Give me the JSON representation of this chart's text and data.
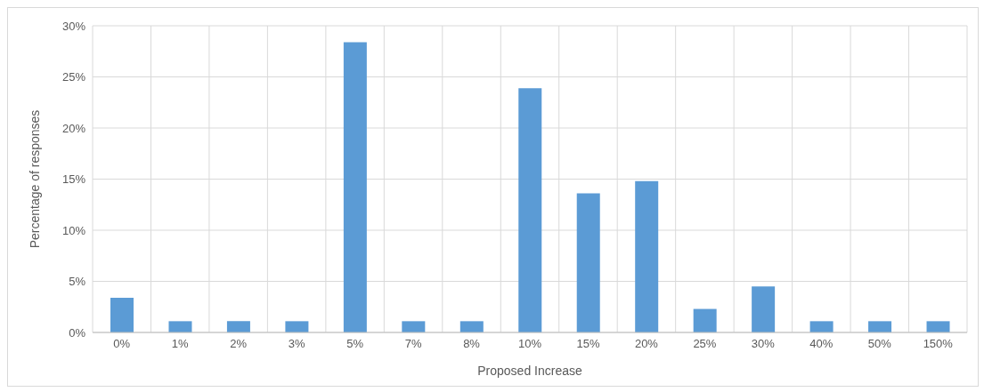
{
  "chart_data": {
    "type": "bar",
    "xlabel": "Proposed Increase",
    "ylabel": "Percentage of responses",
    "categories": [
      "0%",
      "1%",
      "2%",
      "3%",
      "5%",
      "7%",
      "8%",
      "10%",
      "15%",
      "20%",
      "25%",
      "30%",
      "40%",
      "50%",
      "150%"
    ],
    "values": [
      3.4,
      1.1,
      1.1,
      1.1,
      28.4,
      1.1,
      1.1,
      23.9,
      13.6,
      14.8,
      2.3,
      4.5,
      1.1,
      1.1,
      1.1
    ],
    "color": "#5b9bd5",
    "ylim": [
      0,
      30
    ],
    "yticks": [
      {
        "value": 0,
        "label": "0%"
      },
      {
        "value": 5,
        "label": "5%"
      },
      {
        "value": 10,
        "label": "10%"
      },
      {
        "value": 15,
        "label": "15%"
      },
      {
        "value": 20,
        "label": "20%"
      },
      {
        "value": 25,
        "label": "25%"
      },
      {
        "value": 30,
        "label": "30%"
      }
    ],
    "grid": true
  }
}
